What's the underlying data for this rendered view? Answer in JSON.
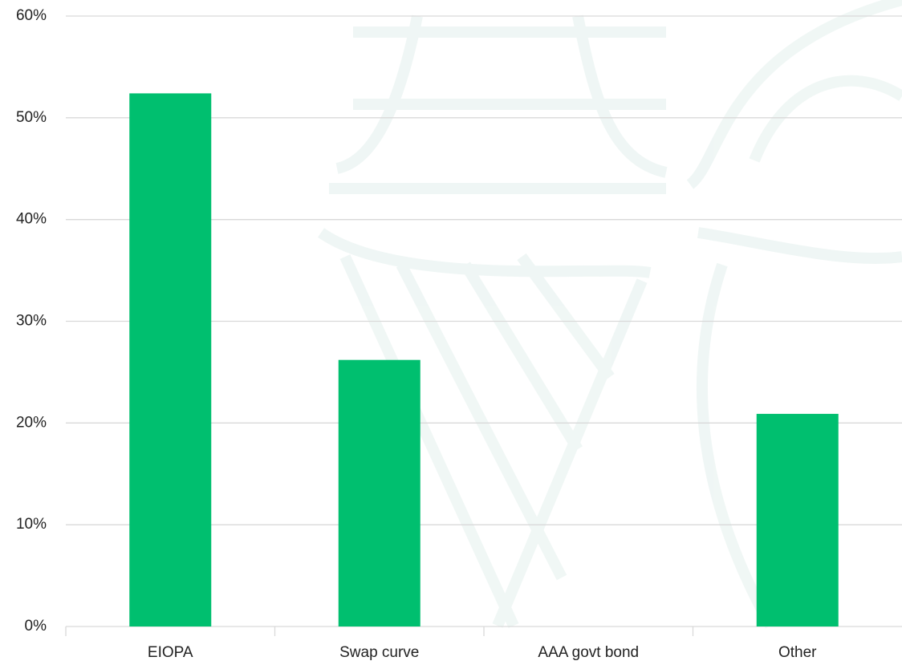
{
  "chart_data": {
    "type": "bar",
    "categories": [
      "EIOPA",
      "Swap curve",
      "AAA govt bond",
      "Other"
    ],
    "values": [
      52.4,
      26.2,
      0,
      20.9
    ],
    "color": "#00bf6f",
    "ylim": [
      0,
      60
    ],
    "yticks": [
      {
        "value": 0,
        "label": "0%"
      },
      {
        "value": 10,
        "label": "10%"
      },
      {
        "value": 20,
        "label": "20%"
      },
      {
        "value": 30,
        "label": "30%"
      },
      {
        "value": 40,
        "label": "40%"
      },
      {
        "value": 50,
        "label": "50%"
      },
      {
        "value": 60,
        "label": "60%"
      }
    ],
    "grid": true
  }
}
